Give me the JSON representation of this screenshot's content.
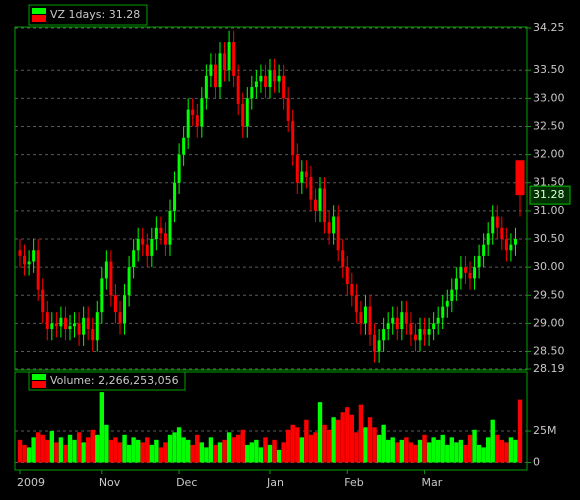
{
  "chart_data": [
    {
      "type": "candlestick",
      "title": "VZ 1days: 31.28",
      "up_color": "#00ff00",
      "down_color": "#ff0000",
      "open": [
        30.3,
        30.2,
        30.05,
        30.1,
        30.3,
        29.6,
        29.2,
        28.9,
        29.0,
        28.95,
        29.1,
        28.9,
        28.95,
        29.0,
        28.8,
        29.1,
        28.9,
        28.7,
        29.2,
        29.8,
        30.1,
        29.5,
        29.2,
        29.0,
        29.5,
        30.0,
        30.3,
        30.5,
        30.4,
        30.2,
        30.5,
        30.7,
        30.6,
        30.4,
        31.0,
        31.5,
        32.0,
        32.3,
        32.8,
        32.7,
        32.5,
        33.0,
        33.4,
        33.6,
        33.2,
        33.8,
        33.5,
        34.0,
        33.4,
        32.9,
        32.5,
        33.0,
        33.2,
        33.3,
        33.4,
        33.2,
        33.5,
        33.3,
        33.4,
        33.0,
        32.6,
        32.0,
        31.5,
        31.7,
        31.6,
        31.2,
        31.0,
        31.4,
        30.8,
        30.6,
        30.9,
        30.3,
        30.0,
        29.7,
        29.5,
        29.2,
        29.0,
        29.3,
        28.8,
        28.5,
        28.7,
        28.9,
        29.0,
        29.1,
        28.9,
        29.2,
        29.0,
        28.8,
        28.7,
        28.9,
        28.8,
        28.9,
        29.0,
        29.1,
        29.3,
        29.4,
        29.6,
        29.8,
        30.0,
        29.9,
        29.8,
        30.0,
        30.2,
        30.4,
        30.6,
        30.9,
        30.7,
        30.5,
        30.3,
        30.4,
        31.9
      ],
      "high": [
        30.5,
        30.4,
        30.3,
        30.5,
        30.5,
        29.8,
        29.4,
        29.2,
        29.2,
        29.3,
        29.3,
        29.15,
        29.2,
        29.2,
        29.3,
        29.3,
        29.1,
        29.4,
        30.0,
        30.3,
        30.3,
        29.7,
        29.4,
        29.7,
        30.2,
        30.5,
        30.7,
        30.7,
        30.6,
        30.7,
        30.9,
        30.9,
        30.8,
        31.2,
        31.7,
        32.2,
        32.5,
        33.0,
        33.0,
        32.9,
        33.2,
        33.6,
        33.8,
        33.8,
        34.0,
        34.0,
        34.2,
        34.2,
        33.6,
        33.1,
        33.2,
        33.4,
        33.5,
        33.6,
        33.6,
        33.7,
        33.7,
        33.6,
        33.6,
        33.2,
        32.8,
        32.2,
        31.9,
        31.9,
        31.8,
        31.4,
        31.6,
        31.6,
        31.0,
        31.1,
        31.1,
        30.5,
        30.2,
        29.9,
        29.7,
        29.4,
        29.5,
        29.5,
        29.0,
        28.9,
        29.1,
        29.2,
        29.3,
        29.3,
        29.4,
        29.4,
        29.2,
        29.0,
        29.1,
        29.1,
        29.1,
        29.2,
        29.3,
        29.5,
        29.6,
        29.8,
        30.0,
        30.2,
        30.2,
        30.1,
        30.2,
        30.4,
        30.6,
        30.8,
        31.1,
        31.1,
        30.9,
        30.7,
        30.6,
        30.7,
        31.9
      ],
      "low": [
        30.0,
        29.85,
        29.85,
        29.9,
        29.4,
        29.0,
        28.7,
        28.7,
        28.75,
        28.75,
        28.7,
        28.7,
        28.75,
        28.6,
        28.6,
        28.7,
        28.5,
        28.5,
        29.0,
        29.6,
        29.3,
        29.0,
        28.8,
        28.8,
        29.3,
        29.8,
        30.1,
        30.2,
        30.0,
        30.0,
        30.3,
        30.4,
        30.2,
        30.2,
        30.8,
        31.3,
        31.8,
        32.1,
        32.5,
        32.3,
        32.3,
        32.8,
        33.2,
        33.0,
        33.0,
        33.3,
        33.3,
        33.2,
        32.7,
        32.3,
        32.3,
        32.8,
        33.0,
        33.1,
        33.0,
        33.0,
        33.1,
        33.1,
        32.8,
        32.4,
        31.8,
        31.3,
        31.3,
        31.4,
        31.0,
        30.8,
        30.8,
        30.6,
        30.4,
        30.4,
        30.1,
        29.8,
        29.5,
        29.3,
        29.0,
        28.8,
        28.8,
        28.6,
        28.3,
        28.3,
        28.5,
        28.7,
        28.8,
        28.7,
        28.7,
        28.8,
        28.6,
        28.5,
        28.5,
        28.6,
        28.6,
        28.7,
        28.8,
        28.9,
        29.1,
        29.2,
        29.4,
        29.6,
        29.7,
        29.6,
        29.6,
        29.8,
        30.0,
        30.2,
        30.4,
        30.5,
        30.3,
        30.1,
        30.1,
        30.2,
        30.9
      ],
      "close": [
        30.2,
        30.05,
        30.1,
        30.3,
        29.6,
        29.2,
        28.9,
        29.0,
        28.95,
        29.1,
        28.9,
        28.95,
        29.0,
        28.8,
        29.1,
        28.9,
        28.7,
        29.2,
        29.8,
        30.1,
        29.5,
        29.2,
        29.0,
        29.5,
        30.0,
        30.3,
        30.5,
        30.4,
        30.2,
        30.5,
        30.7,
        30.6,
        30.4,
        31.0,
        31.5,
        32.0,
        32.3,
        32.8,
        32.7,
        32.5,
        33.0,
        33.4,
        33.6,
        33.2,
        33.8,
        33.5,
        34.0,
        33.4,
        32.9,
        32.5,
        33.0,
        33.2,
        33.3,
        33.4,
        33.2,
        33.5,
        33.3,
        33.4,
        33.0,
        32.6,
        32.0,
        31.5,
        31.7,
        31.6,
        31.2,
        31.0,
        31.4,
        30.8,
        30.6,
        30.9,
        30.3,
        30.0,
        29.7,
        29.5,
        29.2,
        29.0,
        29.3,
        28.8,
        28.5,
        28.7,
        28.9,
        29.0,
        29.1,
        28.9,
        29.2,
        29.0,
        28.8,
        28.7,
        28.9,
        28.8,
        28.9,
        29.0,
        29.1,
        29.3,
        29.4,
        29.6,
        29.8,
        30.0,
        29.9,
        29.8,
        30.0,
        30.2,
        30.4,
        30.6,
        30.9,
        30.7,
        30.5,
        30.3,
        30.4,
        30.5,
        31.28
      ],
      "ylim": [
        28.19,
        34.25
      ],
      "yticks": [
        28.19,
        {
          "value": 28.5,
          "label": "28.50"
        },
        {
          "value": 29,
          "label": "29.00"
        },
        {
          "value": 29.5,
          "label": "29.50"
        },
        {
          "value": 30,
          "label": "30.00"
        },
        {
          "value": 30.5,
          "label": "30.50"
        },
        {
          "value": 31,
          "label": "31.00"
        },
        {
          "value": 31.5,
          "label": "31.50"
        },
        {
          "value": 32,
          "label": "32.00"
        },
        {
          "value": 32.5,
          "label": "32.50"
        },
        {
          "value": 33,
          "label": "33.00"
        },
        {
          "value": 33.5,
          "label": "33.50"
        },
        34.25
      ],
      "grid": true
    },
    {
      "type": "bar",
      "title": "Volume: 2,266,253,056",
      "categories": [
        "2009",
        null,
        null,
        null,
        null,
        null,
        null,
        null,
        null,
        null,
        null,
        null,
        null,
        null,
        null,
        null,
        null,
        null,
        "Nov",
        null,
        null,
        null,
        null,
        null,
        null,
        null,
        null,
        null,
        null,
        null,
        null,
        null,
        null,
        null,
        null,
        "Dec",
        null,
        null,
        null,
        null,
        null,
        null,
        null,
        null,
        null,
        null,
        null,
        null,
        null,
        null,
        null,
        null,
        null,
        null,
        null,
        "Jan",
        null,
        null,
        null,
        null,
        null,
        null,
        null,
        null,
        null,
        null,
        null,
        null,
        null,
        null,
        null,
        null,
        "Feb",
        null,
        null,
        null,
        null,
        null,
        null,
        null,
        null,
        null,
        null,
        null,
        null,
        null,
        null,
        null,
        null,
        "Mar",
        null,
        null,
        null,
        null,
        null,
        null,
        null,
        null,
        null,
        null,
        null,
        null,
        null,
        null,
        null,
        null,
        null,
        null,
        null,
        null,
        null
      ],
      "values": [
        18000000,
        14000000,
        12000000,
        20000000,
        24000000,
        22000000,
        18000000,
        25000000,
        16000000,
        20000000,
        14000000,
        22000000,
        18000000,
        24000000,
        16000000,
        20000000,
        26000000,
        22000000,
        56000000,
        30000000,
        18000000,
        20000000,
        16000000,
        22000000,
        14000000,
        20000000,
        18000000,
        16000000,
        20000000,
        14000000,
        18000000,
        12000000,
        16000000,
        22000000,
        24000000,
        28000000,
        20000000,
        18000000,
        14000000,
        22000000,
        16000000,
        12000000,
        20000000,
        14000000,
        16000000,
        18000000,
        24000000,
        20000000,
        22000000,
        26000000,
        14000000,
        16000000,
        18000000,
        12000000,
        20000000,
        14000000,
        18000000,
        10000000,
        16000000,
        26000000,
        30000000,
        28000000,
        20000000,
        34000000,
        22000000,
        24000000,
        48000000,
        30000000,
        26000000,
        36000000,
        34000000,
        40000000,
        44000000,
        38000000,
        24000000,
        46000000,
        28000000,
        36000000,
        28000000,
        22000000,
        30000000,
        18000000,
        20000000,
        16000000,
        18000000,
        20000000,
        16000000,
        14000000,
        18000000,
        22000000,
        16000000,
        20000000,
        18000000,
        22000000,
        14000000,
        20000000,
        16000000,
        18000000,
        14000000,
        22000000,
        26000000,
        14000000,
        12000000,
        20000000,
        34000000,
        22000000,
        18000000,
        16000000,
        20000000,
        18000000,
        50000000
      ],
      "ylim": [
        -6000000,
        72000000
      ],
      "yticks": [
        0,
        {
          "value": 25000000,
          "label": "25M"
        }
      ],
      "grid": true
    }
  ]
}
